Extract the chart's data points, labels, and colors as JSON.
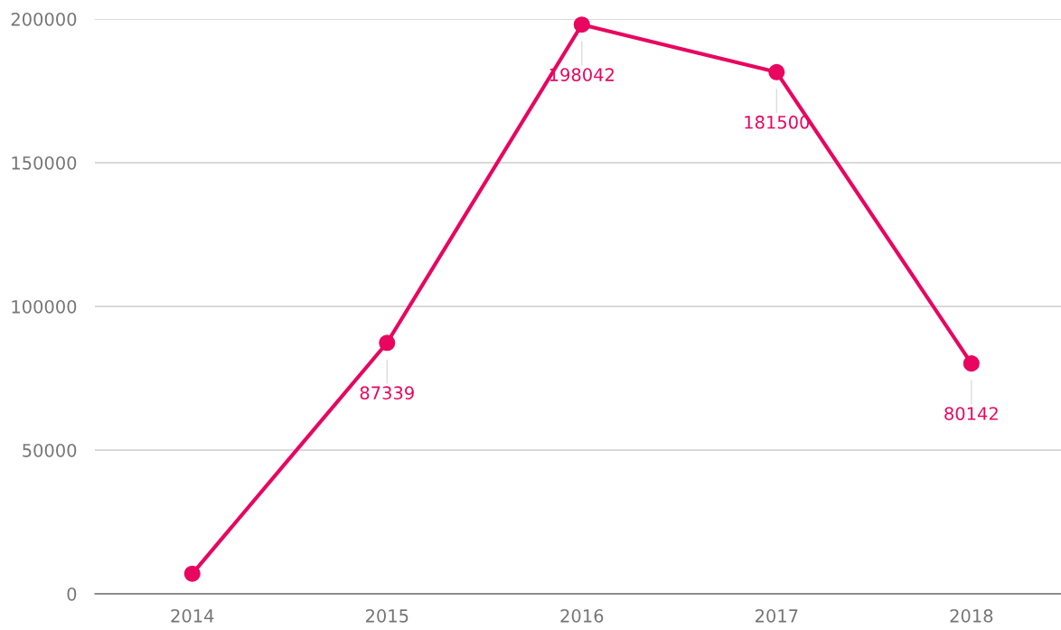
{
  "chart_data": {
    "type": "line",
    "categories": [
      "2014",
      "2015",
      "2016",
      "2017",
      "2018"
    ],
    "series": [
      {
        "color": "#e8065f",
        "values": [
          7000,
          87339,
          198042,
          181500,
          80142
        ],
        "value_labels": [
          null,
          "87339",
          "198042",
          "181500",
          "80142"
        ]
      }
    ],
    "ylim": [
      0,
      200000
    ],
    "yticks": [
      0,
      50000,
      100000,
      150000,
      200000
    ],
    "grid": "y",
    "marker": "circle",
    "line_style": "solid",
    "legend": false
  }
}
